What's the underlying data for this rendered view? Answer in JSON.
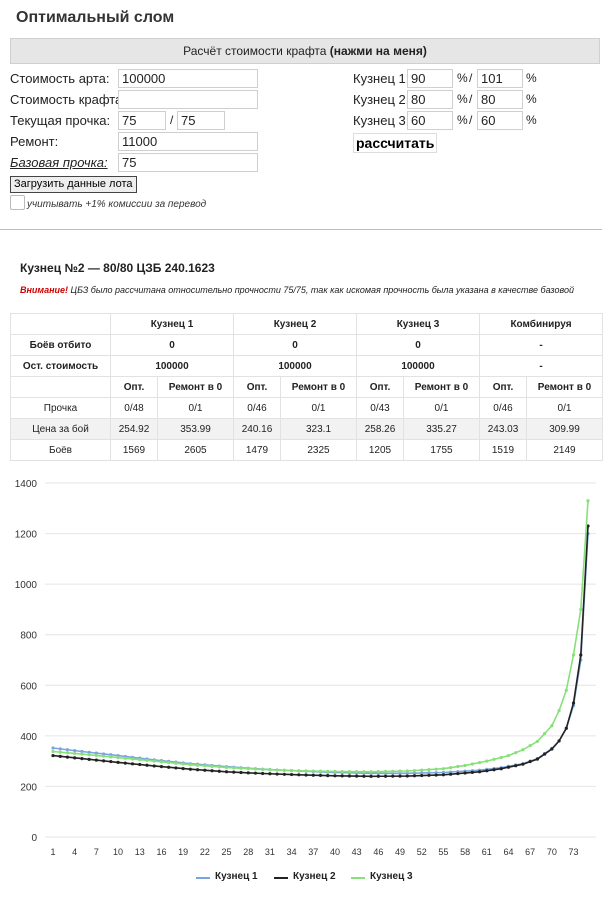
{
  "page": {
    "title": "Оптимальный слом",
    "calc_bar_prefix": "Расчёт стоимости крафта ",
    "calc_bar_bold": "(нажми на меня)"
  },
  "form": {
    "art_cost_label": "Стоимость арта:",
    "art_cost_value": "100000",
    "craft_cost_label": "Стоимость крафта:",
    "craft_cost_value": "",
    "cur_dur_label": "Текущая прочка:",
    "cur_dur_value": "75",
    "cur_dur_max": "75",
    "repair_label": "Ремонт:",
    "repair_value": "11000",
    "base_dur_label": "Базовая прочка:",
    "base_dur_value": "75",
    "load_button": "Загрузить данные лота",
    "commission_label": "учитывать +1% комиссии за перевод",
    "smiths": [
      {
        "label": "Кузнец 1:",
        "value": "90",
        "max": "101"
      },
      {
        "label": "Кузнец 2:",
        "value": "80",
        "max": "80"
      },
      {
        "label": "Кузнец 3:",
        "value": "60",
        "max": "60"
      }
    ],
    "percent": "%",
    "slash": "/",
    "calc_button": "рассчитать"
  },
  "result": {
    "title": "Кузнец №2 — 80/80 ЦЗБ 240.1623",
    "warning_word": "Внимание!",
    "warning_text": " ЦБЗ было рассчитана относительно прочности 75/75, так как искомая прочность была указана в качестве базовой"
  },
  "table": {
    "headers": [
      "Кузнец 1",
      "Кузнец 2",
      "Кузнец 3",
      "Комбинируя"
    ],
    "fights_done_label": "Боёв отбито",
    "fights_done": [
      "0",
      "0",
      "0",
      "-"
    ],
    "remaining_label": "Ост. стоимость",
    "remaining": [
      "100000",
      "100000",
      "100000",
      "-"
    ],
    "subheaders": [
      "Опт.",
      "Ремонт в 0"
    ],
    "rows": [
      {
        "label": "Прочка",
        "values": [
          "0/48",
          "0/1",
          "0/46",
          "0/1",
          "0/43",
          "0/1",
          "0/46",
          "0/1"
        ]
      },
      {
        "label": "Цена за бой",
        "values": [
          "254.92",
          "353.99",
          "240.16",
          "323.1",
          "258.26",
          "335.27",
          "243.03",
          "309.99"
        ]
      },
      {
        "label": "Боёв",
        "values": [
          "1569",
          "2605",
          "1479",
          "2325",
          "1205",
          "1755",
          "1519",
          "2149"
        ]
      }
    ]
  },
  "chart_data": {
    "type": "line",
    "ylim": [
      0,
      1400
    ],
    "yticks": [
      0,
      200,
      400,
      600,
      800,
      1000,
      1200,
      1400
    ],
    "xticks": [
      1,
      4,
      7,
      10,
      13,
      16,
      19,
      22,
      25,
      28,
      31,
      34,
      37,
      40,
      43,
      46,
      49,
      52,
      55,
      58,
      61,
      64,
      67,
      70,
      73
    ],
    "x_range": [
      1,
      75
    ],
    "series": [
      {
        "name": "Кузнец 1",
        "color": "#7aa6e0",
        "points": [
          [
            1,
            352
          ],
          [
            5,
            338
          ],
          [
            10,
            322
          ],
          [
            15,
            305
          ],
          [
            20,
            290
          ],
          [
            25,
            278
          ],
          [
            30,
            268
          ],
          [
            35,
            261
          ],
          [
            40,
            255
          ],
          [
            45,
            252
          ],
          [
            50,
            252
          ],
          [
            55,
            255
          ],
          [
            60,
            264
          ],
          [
            63,
            274
          ],
          [
            66,
            290
          ],
          [
            68,
            310
          ],
          [
            70,
            350
          ],
          [
            71,
            380
          ],
          [
            72,
            430
          ],
          [
            73,
            520
          ],
          [
            74,
            700
          ],
          [
            75,
            1200
          ]
        ]
      },
      {
        "name": "Кузнец 2",
        "color": "#222222",
        "points": [
          [
            1,
            322
          ],
          [
            5,
            310
          ],
          [
            10,
            295
          ],
          [
            15,
            281
          ],
          [
            20,
            268
          ],
          [
            25,
            258
          ],
          [
            30,
            251
          ],
          [
            35,
            246
          ],
          [
            40,
            242
          ],
          [
            45,
            240
          ],
          [
            50,
            241
          ],
          [
            55,
            246
          ],
          [
            60,
            258
          ],
          [
            63,
            270
          ],
          [
            66,
            288
          ],
          [
            68,
            308
          ],
          [
            70,
            348
          ],
          [
            71,
            380
          ],
          [
            72,
            430
          ],
          [
            73,
            530
          ],
          [
            74,
            720
          ],
          [
            75,
            1230
          ]
        ]
      },
      {
        "name": "Кузнец 3",
        "color": "#88e07a",
        "points": [
          [
            1,
            338
          ],
          [
            5,
            328
          ],
          [
            10,
            314
          ],
          [
            15,
            300
          ],
          [
            20,
            286
          ],
          [
            25,
            275
          ],
          [
            30,
            267
          ],
          [
            35,
            262
          ],
          [
            40,
            259
          ],
          [
            45,
            258
          ],
          [
            50,
            261
          ],
          [
            55,
            270
          ],
          [
            58,
            283
          ],
          [
            61,
            300
          ],
          [
            64,
            322
          ],
          [
            66,
            345
          ],
          [
            68,
            378
          ],
          [
            70,
            440
          ],
          [
            71,
            500
          ],
          [
            72,
            580
          ],
          [
            73,
            720
          ],
          [
            74,
            900
          ],
          [
            75,
            1330
          ]
        ]
      }
    ]
  }
}
